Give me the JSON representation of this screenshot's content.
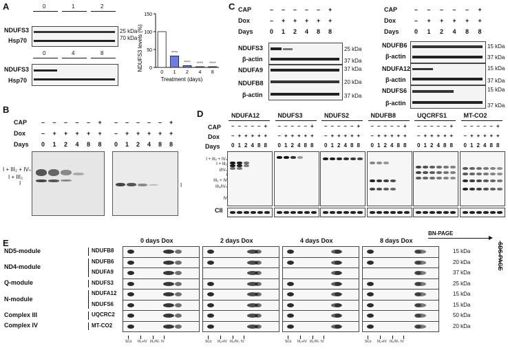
{
  "panelA": {
    "letter": "A",
    "blots": [
      {
        "protein": "NDUFS3",
        "groups": [
          "0",
          "1",
          "2"
        ]
      },
      {
        "protein": "Hsp70"
      },
      {
        "protein": "NDUFS3",
        "groups": [
          "0",
          "4",
          "8"
        ]
      },
      {
        "protein": "Hsp70"
      }
    ],
    "markers": [
      "25 kDa",
      "70 kDa"
    ],
    "chart_data": {
      "type": "bar",
      "categories": [
        "0",
        "1",
        "2",
        "4",
        "8"
      ],
      "values": [
        100,
        32,
        5,
        2,
        2
      ],
      "significance": [
        "",
        "****",
        "****",
        "****",
        "****"
      ],
      "xlabel": "Treatment (days)",
      "ylabel": "NDUFS3 levels (%)",
      "ylim": [
        0,
        150
      ],
      "yticks": [
        "0",
        "50",
        "100",
        "150"
      ],
      "colors": {
        "day0": "#ffffff",
        "treated": "#6d7ce0"
      }
    }
  },
  "panelB": {
    "letter": "B",
    "rows": {
      "cap": "CAP",
      "dox": "Dox",
      "days": "Days"
    },
    "cap_values": [
      "–",
      "–",
      "–",
      "–",
      "–",
      "+"
    ],
    "dox_values": [
      "–",
      "+",
      "+",
      "+",
      "+",
      "+"
    ],
    "day_values": [
      "0",
      "1",
      "2",
      "4",
      "8",
      "8"
    ],
    "left_labels": [
      "I + III₂ + IVₙ",
      "I + III₂",
      "I"
    ],
    "right_label": "I"
  },
  "panelC": {
    "letter": "C",
    "rows": {
      "cap": "CAP",
      "dox": "Dox",
      "days": "Days"
    },
    "cap_values": [
      "–",
      "–",
      "–",
      "–",
      "–",
      "+"
    ],
    "dox_values": [
      "–",
      "+",
      "+",
      "+",
      "+",
      "+"
    ],
    "day_values": [
      "0",
      "1",
      "2",
      "4",
      "8",
      "8"
    ],
    "left_blots": [
      {
        "proteins": [
          "NDUFS3",
          "β-actin"
        ],
        "markers": [
          "25 kDa",
          "37 kDa"
        ]
      },
      {
        "proteins": [
          "NDUFA9",
          "NDUFB8",
          "β-actin"
        ],
        "markers": [
          "37 kDa",
          "20 kDa",
          "37 kDa"
        ]
      }
    ],
    "right_blots": [
      {
        "proteins": [
          "NDUFB6",
          "β-actin"
        ],
        "markers": [
          "15 kDa",
          "37 kDa"
        ]
      },
      {
        "proteins": [
          "NDUFA12",
          "β-actin"
        ],
        "markers": [
          "15 kDa",
          "37 kDa"
        ]
      },
      {
        "proteins": [
          "NDUFS6",
          "β-actin"
        ],
        "markers": [
          "15 kDa",
          "37 kDa"
        ]
      }
    ]
  },
  "panelD": {
    "letter": "D",
    "rows": {
      "cap": "CAP",
      "dox": "Dox",
      "days": "Days"
    },
    "cap_values": [
      "–",
      "–",
      "–",
      "–",
      "–",
      "+"
    ],
    "dox_values": [
      "–",
      "+",
      "+",
      "+",
      "+",
      "+"
    ],
    "day_values": [
      "0",
      "1",
      "2",
      "4",
      "8",
      "8"
    ],
    "antibodies": [
      "NDUFA12",
      "NDUFS3",
      "NDUFS2",
      "NDUFB8",
      "UQCRFS1",
      "MT-CO2"
    ],
    "complex_labels": [
      "I + III₂ + IVₙ",
      "I + III₂",
      "I/IVₙ",
      "I",
      "III₂ + IV",
      "III₂/IVₙ",
      "IV"
    ],
    "loading": "CII"
  },
  "panelE": {
    "letter": "E",
    "columns": [
      "0 days Dox",
      "2 days Dox",
      "4 days Dox",
      "8 days Dox"
    ],
    "bn_page": "BN-PAGE",
    "sds_page": "SDS-PAGE",
    "modules": [
      {
        "name": "ND5-module",
        "proteins": [
          "NDUFB8"
        ]
      },
      {
        "name": "ND4-module",
        "proteins": [
          "NDUFB6",
          "NDUFA9"
        ]
      },
      {
        "name": "Q-module",
        "proteins": [
          "NDUFS3"
        ]
      },
      {
        "name": "N-module",
        "proteins": [
          "NDUFA12",
          "NDUFS6"
        ]
      },
      {
        "name": "Complex III",
        "proteins": [
          "UQCRC2"
        ]
      },
      {
        "name": "Complex IV",
        "proteins": [
          "MT-CO2"
        ]
      }
    ],
    "markers": [
      "15 kDa",
      "20 kDa",
      "37 kDa",
      "25 kDa",
      "15 kDa",
      "15 kDa",
      "50 kDa",
      "20 kDa"
    ],
    "bottom_labels": [
      "SCs",
      "III₂+IV",
      "III₂/IVₙ",
      "IV"
    ]
  }
}
